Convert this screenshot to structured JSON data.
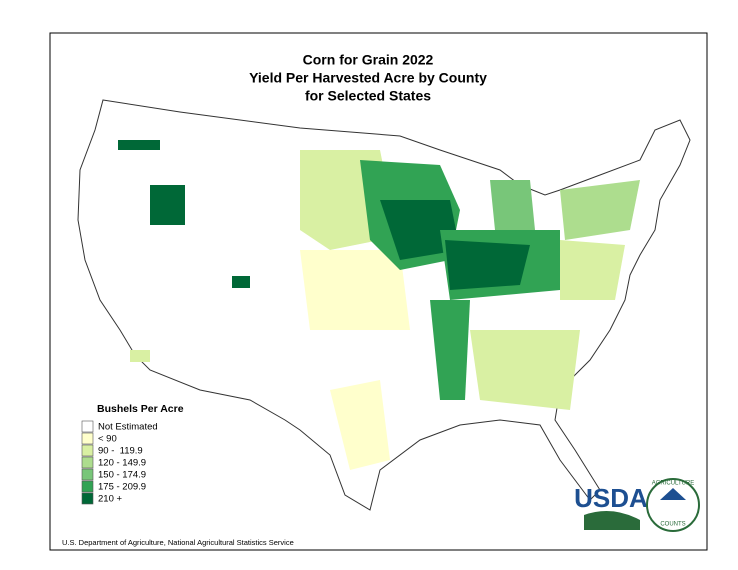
{
  "map": {
    "title": [
      "Corn for Grain 2022",
      "Yield Per Harvested Acre by County",
      "for Selected States"
    ],
    "legend": {
      "title": "Bushels Per Acre",
      "items": [
        {
          "label": "Not Estimated",
          "color": "#ffffff"
        },
        {
          "label": "< 90",
          "color": "#ffffcc"
        },
        {
          "label": "90 -  119.9",
          "color": "#d9f0a3"
        },
        {
          "label": "120 - 149.9",
          "color": "#addd8e"
        },
        {
          "label": "150 - 174.9",
          "color": "#78c679"
        },
        {
          "label": "175 - 209.9",
          "color": "#31a354"
        },
        {
          "label": "210 +",
          "color": "#006837"
        }
      ]
    },
    "source": "U.S. Department of Agriculture, National Agricultural Statistics Service",
    "logos": {
      "usda": "USDA",
      "ring_top": "AGRICULTURE",
      "ring_bottom": "COUNTS"
    }
  }
}
